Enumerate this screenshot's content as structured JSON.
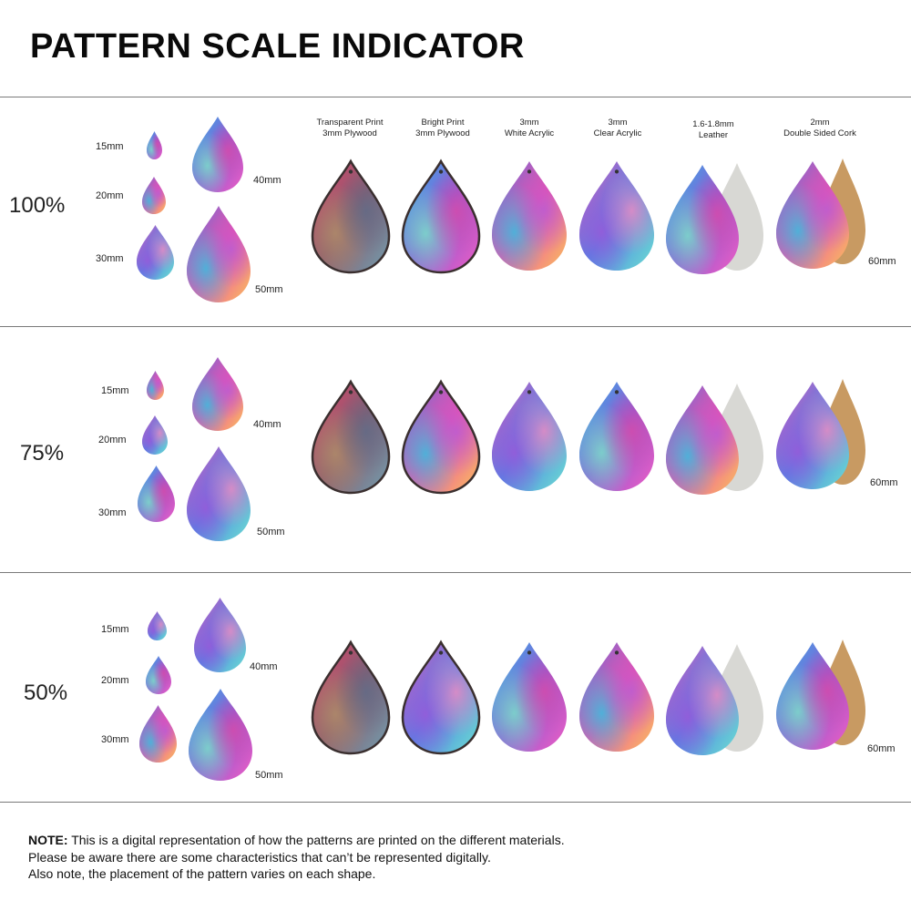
{
  "title": "PATTERN SCALE INDICATOR",
  "materials": [
    {
      "line1": "Transparent Print",
      "line2": "3mm Plywood"
    },
    {
      "line1": "Bright Print",
      "line2": "3mm Plywood"
    },
    {
      "line1": "3mm",
      "line2": "White Acrylic"
    },
    {
      "line1": "3mm",
      "line2": "Clear Acrylic"
    },
    {
      "line1": "1.6-1.8mm",
      "line2": "Leather"
    },
    {
      "line1": "2mm",
      "line2": "Double Sided Cork"
    }
  ],
  "sizes": {
    "s15": "15mm",
    "s20": "20mm",
    "s30": "30mm",
    "s40": "40mm",
    "s50": "50mm",
    "s60": "60mm"
  },
  "scales": [
    {
      "label": "100%"
    },
    {
      "label": "75%"
    },
    {
      "label": "50%"
    }
  ],
  "note": {
    "bold": "NOTE:",
    "line1": " This is a digital representation of how the patterns are printed on the different materials.",
    "line2": "Please be aware there are some characteristics that can’t be represented digitally.",
    "line3": "Also note, the placement of the pattern varies on each shape."
  }
}
